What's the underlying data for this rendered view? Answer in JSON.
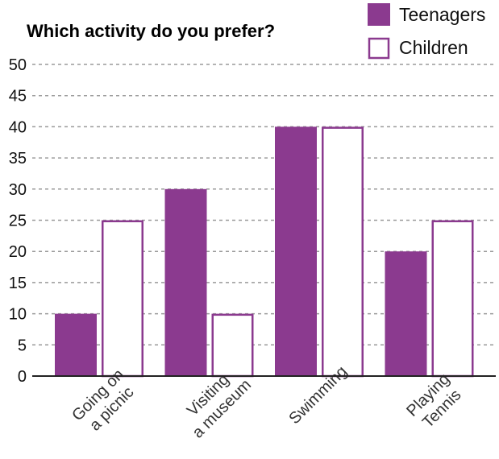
{
  "chart_data": {
    "type": "bar",
    "title": "Which activity do you prefer?",
    "xlabel": "",
    "ylabel": "",
    "ylim": [
      0,
      50
    ],
    "yticks": [
      0,
      5,
      10,
      15,
      20,
      25,
      30,
      35,
      40,
      45,
      50
    ],
    "grid": true,
    "legend_position": "top-right",
    "categories": [
      [
        "Going on",
        "a picnic"
      ],
      [
        "Visiting",
        "a museum"
      ],
      [
        "Swimming"
      ],
      [
        "Playing",
        "Tennis"
      ]
    ],
    "series": [
      {
        "name": "Teenagers",
        "values": [
          10,
          30,
          40,
          20
        ],
        "fill": "#8b3a8f",
        "stroke": "#8b3a8f"
      },
      {
        "name": "Children",
        "values": [
          25,
          10,
          40,
          25
        ],
        "fill": "#ffffff",
        "stroke": "#8b3a8f"
      }
    ]
  }
}
